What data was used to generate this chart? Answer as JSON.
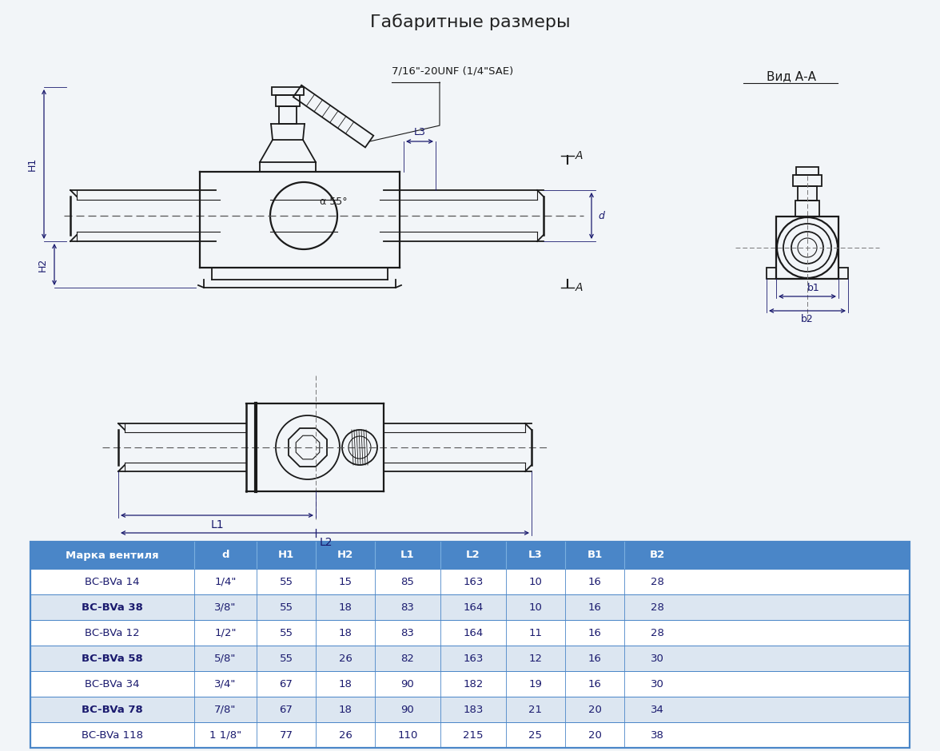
{
  "title": "Габаритные размеры",
  "bg_color": "#f2f5f8",
  "table_header_color": "#4a86c8",
  "table_header_text_color": "#ffffff",
  "table_row_colors": [
    "#ffffff",
    "#dce6f1"
  ],
  "table_border_color": "#4a86c8",
  "table_text_color": "#1a1a6e",
  "headers": [
    "Марка вентиля",
    "d",
    "H1",
    "H2",
    "L1",
    "L2",
    "L3",
    "B1",
    "B2"
  ],
  "rows": [
    [
      "BC-BVa 14",
      "1/4\"",
      "55",
      "15",
      "85",
      "163",
      "10",
      "16",
      "28"
    ],
    [
      "BC-BVa 38",
      "3/8\"",
      "55",
      "18",
      "83",
      "164",
      "10",
      "16",
      "28"
    ],
    [
      "BC-BVa 12",
      "1/2\"",
      "55",
      "18",
      "83",
      "164",
      "11",
      "16",
      "28"
    ],
    [
      "BC-BVa 58",
      "5/8\"",
      "55",
      "26",
      "82",
      "163",
      "12",
      "16",
      "30"
    ],
    [
      "BC-BVa 34",
      "3/4\"",
      "67",
      "18",
      "90",
      "182",
      "19",
      "16",
      "30"
    ],
    [
      "BC-BVa 78",
      "7/8\"",
      "67",
      "18",
      "90",
      "183",
      "21",
      "20",
      "34"
    ],
    [
      "BC-BVa 118",
      "1 1/8\"",
      "77",
      "26",
      "110",
      "215",
      "25",
      "20",
      "38"
    ]
  ],
  "drawing_color": "#1a1a1a",
  "dim_color": "#1a1a6e",
  "label_7_16": "7/16\"-20UNF (1/4\"SAE)",
  "label_vid": "Вид А-А",
  "label_alpha": "α 55°",
  "label_L3": "L3",
  "label_H1": "H1",
  "label_H2": "H2",
  "label_d": "d",
  "label_A": "A",
  "label_L1": "L1",
  "label_L2": "L2",
  "label_b1": "b1",
  "label_b2": "b2"
}
